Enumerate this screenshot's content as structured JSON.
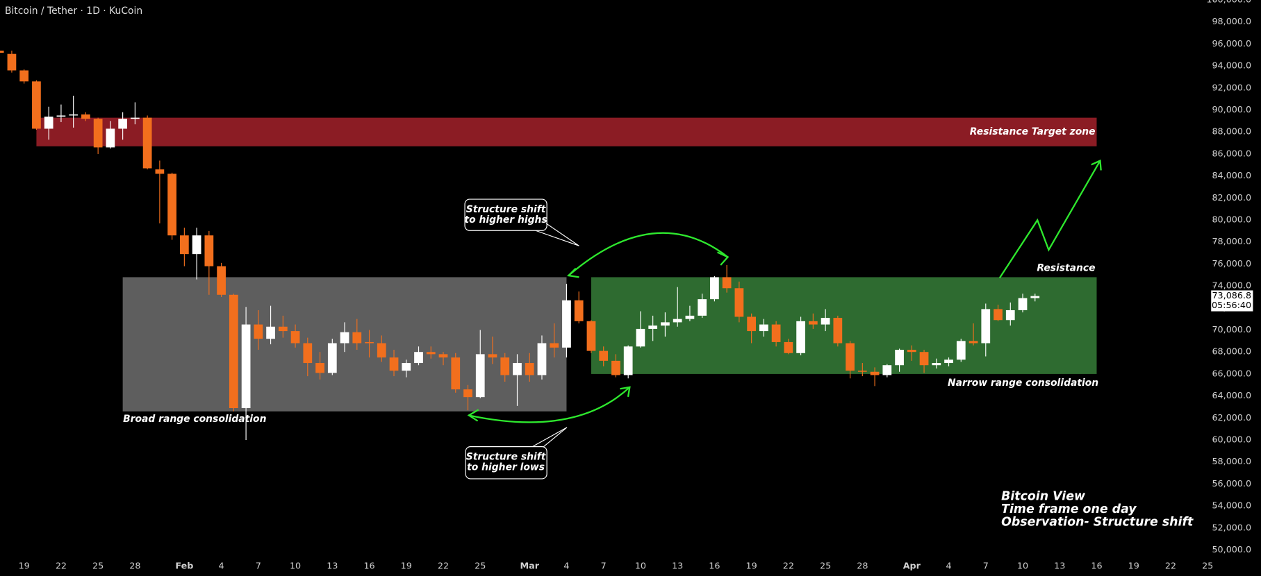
{
  "chart_data": {
    "type": "candlestick",
    "title": "Bitcoin / Tether · 1D · KuCoin",
    "up_color": "#ffffff",
    "down_color": "#f26f1d",
    "categories": [
      null,
      null,
      "19",
      null,
      null,
      "22",
      null,
      null,
      "25",
      null,
      null,
      "28",
      null,
      null,
      null,
      "Feb",
      null,
      null,
      "4",
      null,
      null,
      "7",
      null,
      null,
      "10",
      null,
      null,
      "13",
      null,
      null,
      "16",
      null,
      null,
      "19",
      null,
      null,
      "22",
      null,
      null,
      "25",
      null,
      null,
      null,
      "Mar",
      null,
      null,
      "4",
      null,
      null,
      "7",
      null,
      null,
      "10",
      null,
      null,
      "13",
      null,
      null,
      "16",
      null,
      null,
      "19",
      null,
      null,
      "22",
      null,
      null,
      "25",
      null,
      null,
      "28",
      null,
      null,
      null,
      "Apr",
      null,
      null,
      "4",
      null,
      null,
      "7",
      null,
      null,
      "10",
      null,
      null,
      "13",
      null,
      null,
      "16",
      null,
      null,
      "19",
      null,
      null,
      "22",
      null,
      null,
      "25"
    ],
    "open": [
      95400,
      95100,
      93600,
      92600,
      88300,
      89400,
      89500,
      89600,
      89200,
      86600,
      88300,
      89200,
      89300,
      84600,
      84200,
      78600,
      76900,
      78600,
      75800,
      73200,
      62900,
      70500,
      69200,
      70300,
      69900,
      68800,
      67000,
      66100,
      68800,
      69800,
      68900,
      68800,
      67500,
      66300,
      67000,
      68000,
      67800,
      67500,
      64600,
      63900,
      67800,
      67500,
      65900,
      67000,
      65900,
      68800,
      68400,
      72700,
      70800,
      68100,
      67200,
      65900,
      68500,
      70100,
      70400,
      70700,
      71000,
      71300,
      72800,
      74800,
      73800,
      71200,
      69900,
      70500,
      68900,
      67900,
      70800,
      70500,
      71100,
      68800,
      66300,
      66200,
      65900,
      66800,
      68200,
      68000,
      66800,
      67000,
      67300,
      69000,
      68800,
      71900,
      70900,
      71800,
      72900,
      null,
      null,
      null,
      null,
      null,
      null,
      null,
      null,
      null,
      null,
      null,
      null,
      null,
      null
    ],
    "high": [
      95600,
      95400,
      93700,
      92700,
      90300,
      90500,
      91300,
      89800,
      89300,
      89000,
      89800,
      90700,
      89500,
      85400,
      84300,
      79300,
      79300,
      79000,
      76100,
      73300,
      72100,
      71800,
      72200,
      71300,
      70500,
      69300,
      68000,
      69200,
      70700,
      71000,
      70000,
      69500,
      68200,
      67300,
      68500,
      68500,
      68000,
      67900,
      65000,
      70000,
      69400,
      67900,
      67800,
      67900,
      69500,
      70600,
      74200,
      73500,
      70900,
      68500,
      67800,
      68600,
      71700,
      71300,
      71600,
      73900,
      72200,
      73300,
      74900,
      75900,
      74400,
      71500,
      71000,
      70800,
      69200,
      71200,
      71500,
      71900,
      71300,
      69000,
      67000,
      66600,
      66900,
      68300,
      68600,
      68200,
      67400,
      67500,
      69200,
      70600,
      72400,
      72300,
      72500,
      73300,
      73300,
      null,
      null,
      null,
      null,
      null,
      null,
      null,
      null,
      null,
      null,
      null,
      null,
      null,
      null
    ],
    "low": [
      95100,
      93400,
      92400,
      88200,
      87300,
      88900,
      88400,
      89000,
      86000,
      86500,
      87300,
      88700,
      84600,
      79700,
      78200,
      75800,
      74600,
      73200,
      73000,
      62600,
      60000,
      68200,
      68700,
      69300,
      68400,
      65800,
      65500,
      65900,
      68000,
      68200,
      67500,
      67100,
      65800,
      65700,
      66800,
      67400,
      66800,
      64300,
      62700,
      63800,
      66900,
      65300,
      63100,
      65300,
      65500,
      67500,
      67500,
      70600,
      67900,
      66700,
      65700,
      65600,
      68400,
      69000,
      69400,
      70300,
      70800,
      71100,
      72600,
      73400,
      70700,
      68800,
      69400,
      68500,
      67800,
      67700,
      70100,
      69900,
      68500,
      65600,
      65800,
      64900,
      65700,
      66200,
      67200,
      66100,
      66500,
      66700,
      67100,
      68600,
      67600,
      70800,
      70400,
      71600,
      72600,
      null,
      null,
      null,
      null,
      null,
      null,
      null,
      null,
      null,
      null,
      null,
      null,
      null,
      null
    ],
    "close": [
      95200,
      93600,
      92600,
      88300,
      89400,
      89500,
      89600,
      89200,
      86600,
      88300,
      89200,
      89300,
      84700,
      84200,
      78600,
      76900,
      78600,
      75800,
      73200,
      62900,
      70500,
      69200,
      70300,
      69900,
      68800,
      67000,
      66100,
      68800,
      69800,
      68800,
      68800,
      67500,
      66300,
      67000,
      68000,
      67800,
      67500,
      64600,
      63900,
      67800,
      67500,
      65900,
      67000,
      65900,
      68800,
      68400,
      72700,
      70800,
      68100,
      67200,
      65900,
      68500,
      70100,
      70400,
      70700,
      71000,
      71300,
      72800,
      74800,
      73800,
      71200,
      69900,
      70500,
      68900,
      67900,
      70800,
      70500,
      71100,
      68800,
      66300,
      66200,
      65900,
      66800,
      68200,
      68000,
      66800,
      67000,
      67300,
      69000,
      68800,
      71900,
      70900,
      71800,
      72900,
      73086.8,
      null,
      null,
      null,
      null,
      null,
      null,
      null,
      null,
      null,
      null,
      null,
      null,
      null,
      null
    ],
    "last_price_label": "73,086.8",
    "countdown": "05:56:40",
    "ylim": [
      48000,
      100000
    ],
    "yticks": [
      {
        "value": 50000,
        "label": "50,000.0"
      },
      {
        "value": 52000,
        "label": "52,000.0"
      },
      {
        "value": 54000,
        "label": "54,000.0"
      },
      {
        "value": 56000,
        "label": "56,000.0"
      },
      {
        "value": 58000,
        "label": "58,000.0"
      },
      {
        "value": 60000,
        "label": "60,000.0"
      },
      {
        "value": 62000,
        "label": "62,000.0"
      },
      {
        "value": 64000,
        "label": "64,000.0"
      },
      {
        "value": 66000,
        "label": "66,000.0"
      },
      {
        "value": 68000,
        "label": "68,000.0"
      },
      {
        "value": 70000,
        "label": "70,000.0"
      },
      {
        "value": 72000,
        "label": "72,000.0"
      },
      {
        "value": 74000,
        "label": "74,000.0"
      },
      {
        "value": 76000,
        "label": "76,000.0"
      },
      {
        "value": 78000,
        "label": "78,000.0"
      },
      {
        "value": 80000,
        "label": "80,000.0"
      },
      {
        "value": 82000,
        "label": "82,000.0"
      },
      {
        "value": 84000,
        "label": "84,000.0"
      },
      {
        "value": 86000,
        "label": "86,000.0"
      },
      {
        "value": 88000,
        "label": "88,000.0"
      },
      {
        "value": 90000,
        "label": "90,000.0"
      },
      {
        "value": 92000,
        "label": "92,000.0"
      },
      {
        "value": 94000,
        "label": "94,000.0"
      },
      {
        "value": 96000,
        "label": "96,000.0"
      },
      {
        "value": 98000,
        "label": "98,000.0"
      },
      {
        "value": 100000,
        "label": "100,000.0"
      }
    ],
    "zones": [
      {
        "label": "Resistance Target zone",
        "range": [
          86700,
          89300
        ],
        "span": [
          3,
          89
        ],
        "color": "#8b1c24"
      },
      {
        "label": "Broad range consolidation",
        "range": [
          62600,
          74800
        ],
        "span": [
          10,
          46
        ],
        "color": "#5e5e5e"
      },
      {
        "label": "Narrow range consolidation",
        "range": [
          66000,
          74800
        ],
        "span": [
          48,
          89
        ],
        "color": "#2e6b30"
      }
    ],
    "annotations": {
      "resistance": "Resistance",
      "callout_highs": [
        "Structure shift",
        "to higher highs"
      ],
      "callout_lows": [
        "Structure shift",
        "to higher lows"
      ],
      "note": [
        "Bitcoin View",
        "Time frame one day",
        "Observation- Structure shift"
      ]
    }
  }
}
